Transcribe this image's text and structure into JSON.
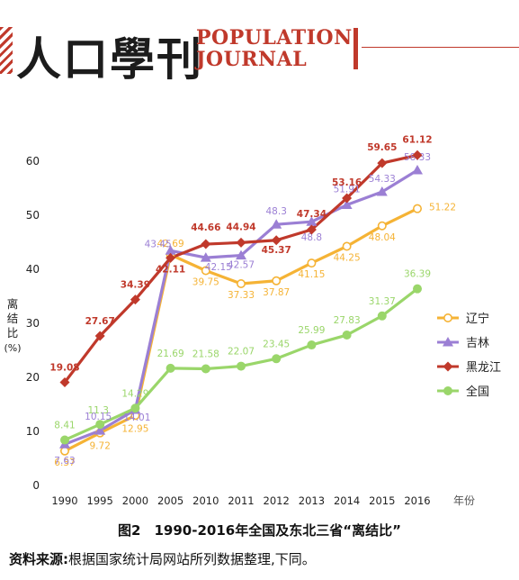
{
  "header": {
    "logo_cn": "人口學刊",
    "logo_en_line1": "POPULATION",
    "logo_en_line2": "JOURNAL"
  },
  "caption": "图2　1990-2016年全国及东北三省“离结比”",
  "source_label": "资料来源:",
  "source_text": "根据国家统计局网站所列数据整理,下同。",
  "chart_data": {
    "type": "line",
    "title": "",
    "ylabel": "离结比",
    "ylabel_unit": "(%)",
    "xlabel": "年份",
    "categories": [
      "1990",
      "1995",
      "2000",
      "2005",
      "2010",
      "2011",
      "2012",
      "2013",
      "2014",
      "2015",
      "2016"
    ],
    "ylim": [
      0,
      60
    ],
    "yticks": [
      0,
      10,
      20,
      30,
      40,
      50,
      60
    ],
    "legend_position": "right",
    "series": [
      {
        "name": "辽宁",
        "color": "#f5b335",
        "marker": "circle",
        "values": [
          6.37,
          9.72,
          12.95,
          42.69,
          39.75,
          37.33,
          37.87,
          41.15,
          44.25,
          48.04,
          51.22
        ]
      },
      {
        "name": "吉林",
        "color": "#9b7fd4",
        "marker": "triangle",
        "values": [
          7.63,
          10.15,
          14.01,
          43.45,
          42.15,
          42.57,
          48.3,
          48.8,
          51.91,
          54.33,
          58.33
        ]
      },
      {
        "name": "黑龙江",
        "color": "#c0392b",
        "marker": "diamond",
        "values": [
          19.08,
          27.67,
          34.39,
          42.11,
          44.66,
          44.94,
          45.37,
          47.34,
          53.16,
          59.65,
          61.12
        ]
      },
      {
        "name": "全国",
        "color": "#9ad66a",
        "marker": "circle",
        "values": [
          8.41,
          11.3,
          14.29,
          21.69,
          21.58,
          22.07,
          23.45,
          25.99,
          27.83,
          31.37,
          36.39
        ]
      }
    ]
  }
}
